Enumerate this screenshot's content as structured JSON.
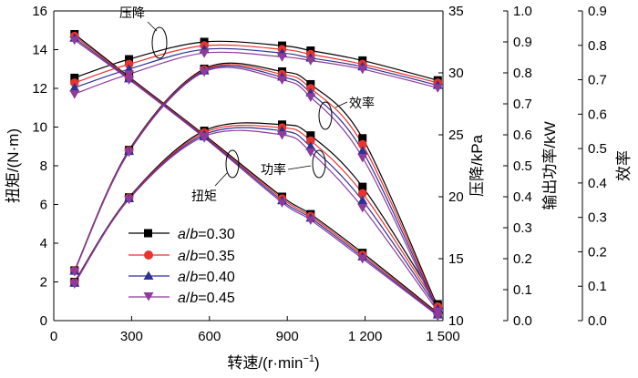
{
  "chart_data": {
    "type": "line",
    "x": [
      80,
      290,
      580,
      880,
      990,
      1190,
      1480
    ],
    "xlabel": "转速/(r·min",
    "xlabel_sup": "−1",
    "xlabel_tail": ")",
    "xlim": [
      0,
      1500
    ],
    "xticks": [
      0,
      300,
      600,
      900,
      1200,
      1500
    ],
    "xtick_labels": [
      "0",
      "300",
      "600",
      "900",
      "1 200",
      "1 500"
    ],
    "axes": [
      {
        "key": "torque",
        "label": "扭矩/(N·m)",
        "lim": [
          0,
          16
        ],
        "ticks": [
          0,
          2,
          4,
          6,
          8,
          10,
          12,
          14,
          16
        ],
        "tick_labels": [
          "0",
          "2",
          "4",
          "6",
          "8",
          "10",
          "12",
          "14",
          "16"
        ]
      },
      {
        "key": "pressure",
        "label": "压降/kPa",
        "lim": [
          10,
          35
        ],
        "ticks": [
          10,
          15,
          20,
          25,
          30,
          35
        ],
        "tick_labels": [
          "10",
          "15",
          "20",
          "25",
          "30",
          "35"
        ]
      },
      {
        "key": "power",
        "label": "输出功率/kW",
        "lim": [
          0,
          1.0
        ],
        "ticks": [
          0,
          0.1,
          0.2,
          0.3,
          0.4,
          0.5,
          0.6,
          0.7,
          0.8,
          0.9,
          1.0
        ],
        "tick_labels": [
          "0.0",
          "0.1",
          "0.2",
          "0.3",
          "0.4",
          "0.5",
          "0.6",
          "0.7",
          "0.8",
          "0.9",
          "1.0"
        ]
      },
      {
        "key": "efficiency",
        "label": "效率",
        "lim": [
          0,
          0.9
        ],
        "ticks": [
          0,
          0.1,
          0.2,
          0.3,
          0.4,
          0.5,
          0.6,
          0.7,
          0.8,
          0.9
        ],
        "tick_labels": [
          "0.0",
          "0.1",
          "0.2",
          "0.3",
          "0.4",
          "0.5",
          "0.6",
          "0.7",
          "0.8",
          "0.9"
        ]
      }
    ],
    "series": [
      {
        "name": "a/b=0.30",
        "ratio": "0.30",
        "color": "#000000",
        "marker": "square",
        "torque": [
          14.8,
          12.6,
          9.6,
          6.4,
          5.5,
          3.5,
          0.4
        ],
        "pressure": [
          29.6,
          31.1,
          32.5,
          32.2,
          31.8,
          31.0,
          29.4
        ],
        "power": [
          0.125,
          0.398,
          0.613,
          0.633,
          0.598,
          0.432,
          0.053
        ],
        "efficiency": [
          0.146,
          0.496,
          0.732,
          0.724,
          0.687,
          0.53,
          0.04
        ]
      },
      {
        "name": "a/b=0.35",
        "ratio": "0.35",
        "color": "#e8342e",
        "marker": "circle",
        "torque": [
          14.7,
          12.55,
          9.55,
          6.3,
          5.4,
          3.4,
          0.35
        ],
        "pressure": [
          29.2,
          30.7,
          32.2,
          31.9,
          31.5,
          30.7,
          29.2
        ],
        "power": [
          0.123,
          0.396,
          0.607,
          0.623,
          0.581,
          0.411,
          0.045
        ],
        "efficiency": [
          0.145,
          0.494,
          0.729,
          0.716,
          0.675,
          0.512,
          0.035
        ]
      },
      {
        "name": "a/b=0.40",
        "ratio": "0.40",
        "color": "#2e3192",
        "marker": "triangle-up",
        "torque": [
          14.6,
          12.5,
          9.5,
          6.2,
          5.3,
          3.3,
          0.3
        ],
        "pressure": [
          28.8,
          30.3,
          31.9,
          31.6,
          31.2,
          30.5,
          29.0
        ],
        "power": [
          0.121,
          0.394,
          0.601,
          0.613,
          0.562,
          0.388,
          0.038
        ],
        "efficiency": [
          0.144,
          0.492,
          0.726,
          0.708,
          0.662,
          0.493,
          0.03
        ]
      },
      {
        "name": "a/b=0.45",
        "ratio": "0.45",
        "color": "#8e3b9c",
        "marker": "triangle-down",
        "torque": [
          14.5,
          12.45,
          9.45,
          6.1,
          5.2,
          3.2,
          0.25
        ],
        "pressure": [
          28.3,
          29.9,
          31.6,
          31.3,
          31.0,
          30.3,
          28.8
        ],
        "power": [
          0.119,
          0.392,
          0.595,
          0.6,
          0.545,
          0.365,
          0.03
        ],
        "efficiency": [
          0.143,
          0.49,
          0.723,
          0.7,
          0.65,
          0.474,
          0.025
        ]
      }
    ],
    "legend_prefix": "a/b=",
    "legend_position": "lower-left",
    "annotations": {
      "pressure": "压降",
      "efficiency": "效率",
      "power": "功率",
      "torque": "扭矩"
    },
    "grid": false
  }
}
